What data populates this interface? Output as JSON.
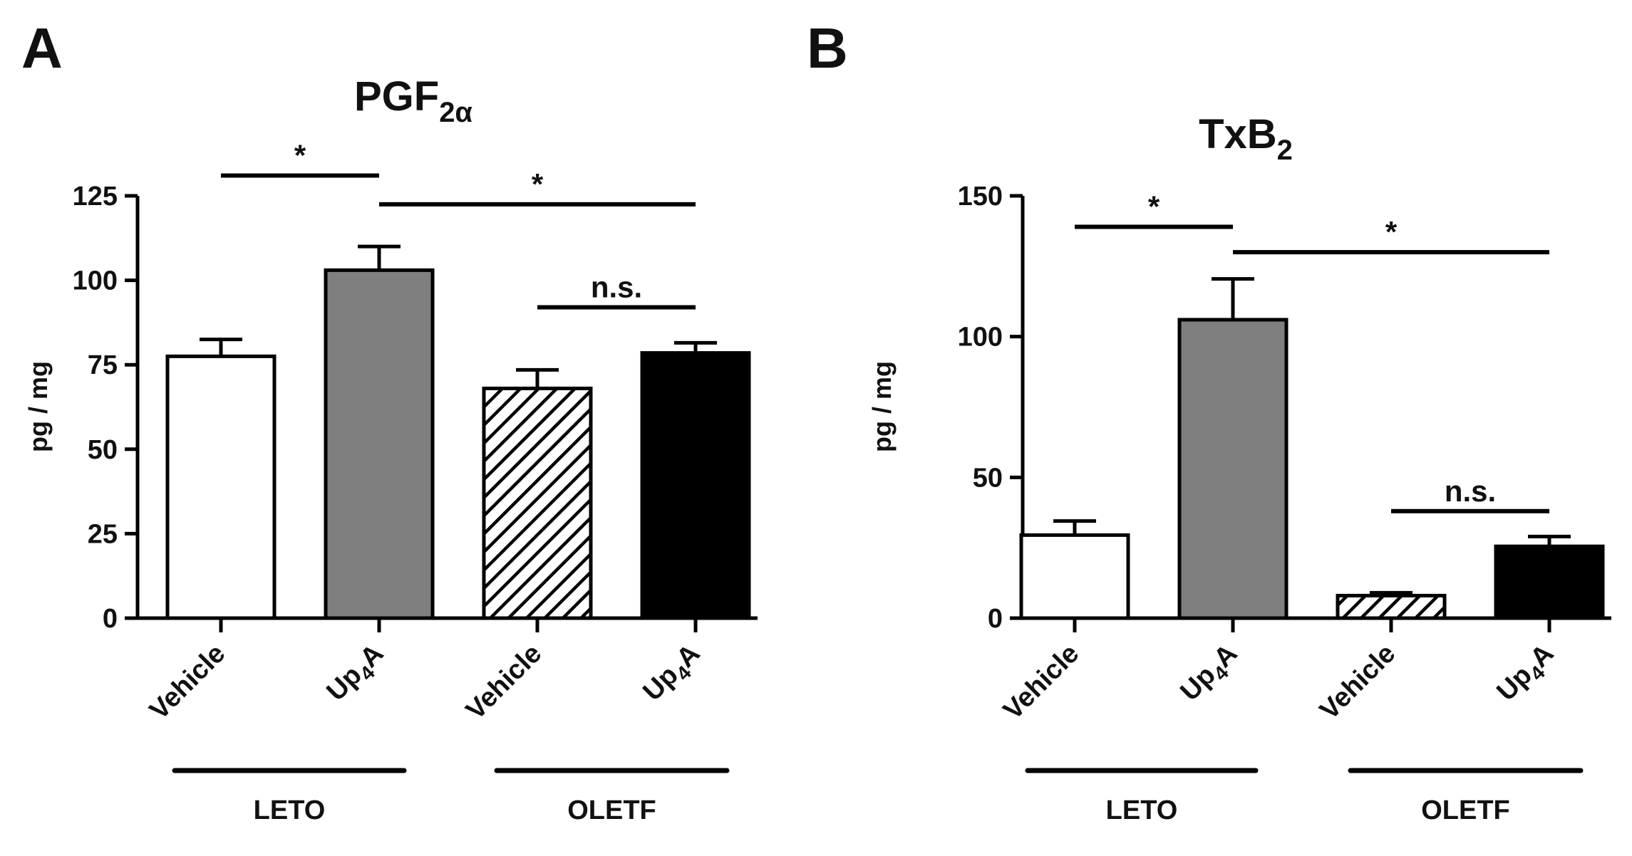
{
  "figure": {
    "panels": [
      "A",
      "B"
    ],
    "groups": [
      "LETO",
      "OLETF"
    ]
  },
  "chart_data": [
    {
      "panel": "A",
      "type": "bar",
      "title": "PGF",
      "title_subscript": "2α",
      "ylabel": "pg / mg",
      "ylim": [
        0,
        125
      ],
      "yticks": [
        0,
        25,
        50,
        75,
        100,
        125
      ],
      "categories": [
        {
          "name": "Vehicle",
          "group": "LETO",
          "fill": "#ffffff"
        },
        {
          "name": "Up",
          "sub": "4",
          "tail": "A",
          "group": "LETO",
          "fill": "#7f7f7f"
        },
        {
          "name": "Vehicle",
          "group": "OLETF",
          "fill": "hatch"
        },
        {
          "name": "Up",
          "sub": "4",
          "tail": "A",
          "group": "OLETF",
          "fill": "#000000"
        }
      ],
      "values": [
        77.5,
        103,
        68,
        78.5
      ],
      "errors": [
        5,
        7,
        5.5,
        3
      ],
      "significance": [
        {
          "from": 0,
          "to": 1,
          "label": "*",
          "y": 131
        },
        {
          "from": 1,
          "to": 3,
          "label": "*",
          "y": 122.5
        },
        {
          "from": 2,
          "to": 3,
          "label": "n.s.",
          "y": 92
        }
      ]
    },
    {
      "panel": "B",
      "type": "bar",
      "title": "TxB",
      "title_subscript": "2",
      "ylabel": "pg / mg",
      "ylim": [
        0,
        150
      ],
      "yticks": [
        0,
        50,
        100,
        150
      ],
      "categories": [
        {
          "name": "Vehicle",
          "group": "LETO",
          "fill": "#ffffff"
        },
        {
          "name": "Up",
          "sub": "4",
          "tail": "A",
          "group": "LETO",
          "fill": "#7f7f7f"
        },
        {
          "name": "Vehicle",
          "group": "OLETF",
          "fill": "hatch"
        },
        {
          "name": "Up",
          "sub": "4",
          "tail": "A",
          "group": "OLETF",
          "fill": "#000000"
        }
      ],
      "values": [
        29.5,
        106,
        8,
        25.5
      ],
      "errors": [
        5,
        14.5,
        1,
        3.5
      ],
      "significance": [
        {
          "from": 0,
          "to": 1,
          "label": "*",
          "y": 139
        },
        {
          "from": 1,
          "to": 3,
          "label": "*",
          "y": 130
        },
        {
          "from": 2,
          "to": 3,
          "label": "n.s.",
          "y": 38
        }
      ]
    }
  ]
}
